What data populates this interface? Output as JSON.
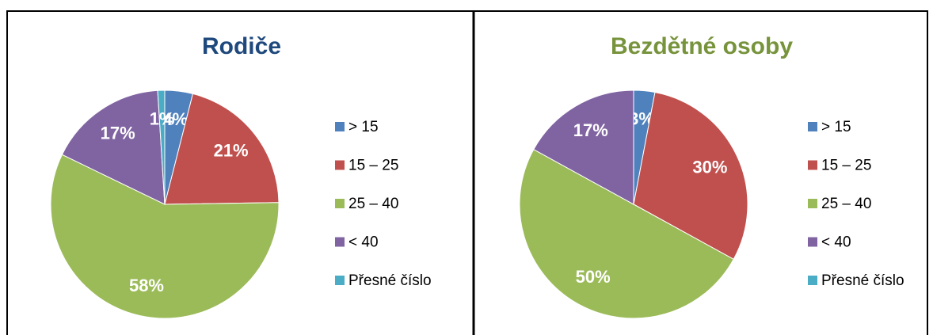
{
  "chart_data": [
    {
      "type": "pie",
      "title": "Rodiče",
      "title_color": "#1f497d",
      "categories": [
        "> 15",
        "15 – 25",
        "25 – 40",
        "< 40",
        "Přesné číslo"
      ],
      "values": [
        4,
        21,
        58,
        17,
        1
      ],
      "value_labels": [
        "4%",
        "21%",
        "58%",
        "17%",
        "1%"
      ],
      "colors": [
        "#4f81bd",
        "#c0504d",
        "#9bbb59",
        "#8064a2",
        "#4bacc6"
      ],
      "legend": "right"
    },
    {
      "type": "pie",
      "title": "Bezdětné osoby",
      "title_color": "#77933c",
      "categories": [
        "> 15",
        "15 – 25",
        "25 – 40",
        "< 40",
        "Přesné číslo"
      ],
      "values": [
        3,
        30,
        50,
        17,
        0
      ],
      "value_labels": [
        "3%",
        "30%",
        "50%",
        "17%",
        null
      ],
      "colors": [
        "#4f81bd",
        "#c0504d",
        "#9bbb59",
        "#8064a2",
        "#4bacc6"
      ],
      "legend": "right"
    }
  ]
}
